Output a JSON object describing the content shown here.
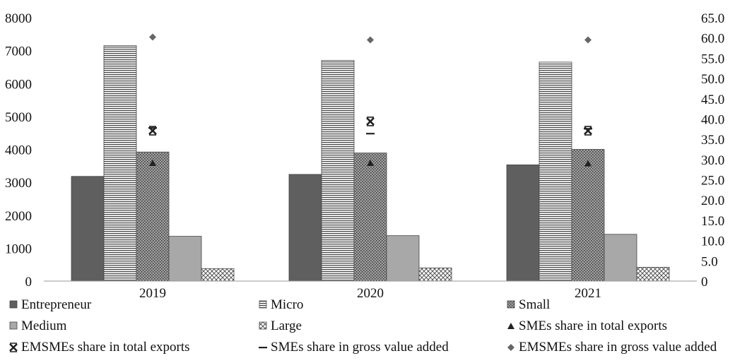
{
  "chart_data": {
    "type": "bar",
    "categories": [
      "2019",
      "2020",
      "2021"
    ],
    "y_left": {
      "min": 0,
      "max": 8000,
      "ticks": [
        "0",
        "1000",
        "2000",
        "3000",
        "4000",
        "5000",
        "6000",
        "7000",
        "8000"
      ]
    },
    "y_right": {
      "min": 0,
      "max": 65,
      "ticks": [
        "0",
        "5.0",
        "10.0",
        "15.0",
        "20.0",
        "25.0",
        "30.0",
        "35.0",
        "40.0",
        "45.0",
        "50.0",
        "55.0",
        "60.0",
        "65.0"
      ]
    },
    "bar_series": [
      {
        "name": "Entrepreneur",
        "values": [
          3180,
          3240,
          3530
        ],
        "color": "#5f5f5f",
        "pattern": "solid"
      },
      {
        "name": "Micro",
        "values": [
          7150,
          6700,
          6650
        ],
        "color": "#ffffff",
        "pattern": "horizontal-lines"
      },
      {
        "name": "Small",
        "values": [
          3920,
          3890,
          4000
        ],
        "color": "#9a9a9a",
        "pattern": "dots"
      },
      {
        "name": "Medium",
        "values": [
          1360,
          1380,
          1420
        ],
        "color": "#a8a8a8",
        "pattern": "solid"
      },
      {
        "name": "Large",
        "values": [
          380,
          400,
          420
        ],
        "color": "#ffffff",
        "pattern": "crosshatch"
      }
    ],
    "marker_series": [
      {
        "name": "SMEs share in total exports",
        "values": [
          29.1,
          29.1,
          29.0
        ],
        "marker": "triangle",
        "color": "#222222"
      },
      {
        "name": "EMSMEs share in total exports",
        "values": [
          37.1,
          39.4,
          37.1
        ],
        "marker": "x",
        "color": "#222222"
      },
      {
        "name": "SMEs share in gross value added",
        "values": [
          37.8,
          36.4,
          37.6
        ],
        "marker": "dash",
        "color": "#222222"
      },
      {
        "name": "EMSMEs share in gross value added",
        "values": [
          60.2,
          59.5,
          59.5
        ],
        "marker": "diamond",
        "color": "#666666"
      }
    ],
    "legend_position": "bottom",
    "grid": false
  }
}
